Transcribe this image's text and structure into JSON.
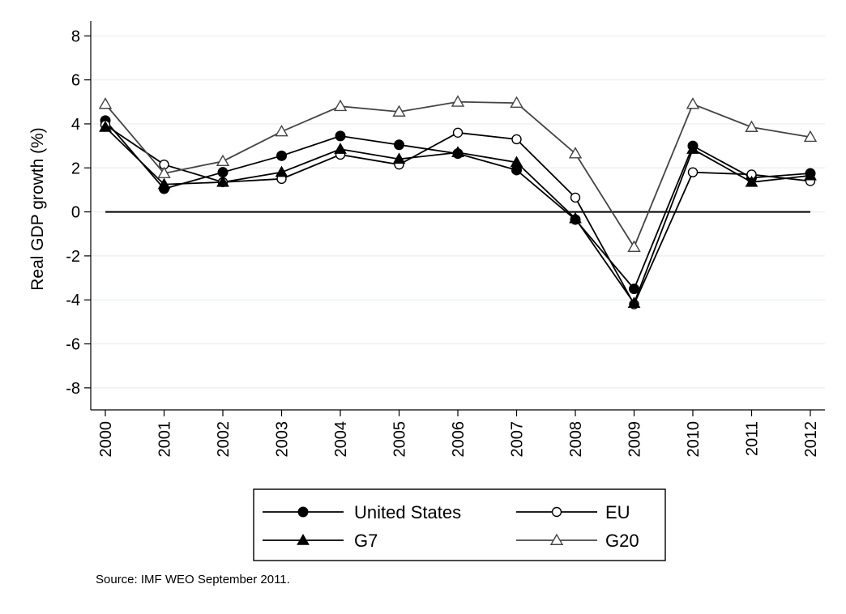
{
  "chart_data": {
    "type": "line",
    "title": "",
    "xlabel": "",
    "ylabel": "Real GDP growth (%)",
    "x": [
      "2000",
      "2001",
      "2002",
      "2003",
      "2004",
      "2005",
      "2006",
      "2007",
      "2008",
      "2009",
      "2010",
      "2011",
      "2012"
    ],
    "ylim": [
      -9,
      8.6
    ],
    "yticks": [
      "8",
      "6",
      "4",
      "2",
      "0",
      "-2",
      "-4",
      "-6",
      "-8"
    ],
    "ytick_values": [
      8,
      6,
      4,
      2,
      0,
      -2,
      -4,
      -6,
      -8
    ],
    "grid": true,
    "zero_line": true,
    "legend_position": "bottom",
    "series": [
      {
        "name": "United States",
        "marker": "filled-circle",
        "values": [
          4.15,
          1.05,
          1.8,
          2.55,
          3.45,
          3.05,
          2.65,
          1.9,
          -0.35,
          -3.5,
          3.0,
          1.55,
          1.75
        ]
      },
      {
        "name": "EU",
        "marker": "hollow-circle",
        "values": [
          3.95,
          2.15,
          1.35,
          1.5,
          2.6,
          2.15,
          3.6,
          3.3,
          0.65,
          -4.2,
          1.8,
          1.7,
          1.4
        ]
      },
      {
        "name": "G7",
        "marker": "filled-triangle",
        "values": [
          3.85,
          1.25,
          1.35,
          1.8,
          2.85,
          2.4,
          2.7,
          2.25,
          -0.3,
          -4.15,
          2.85,
          1.35,
          1.65
        ]
      },
      {
        "name": "G20",
        "marker": "hollow-triangle",
        "values": [
          4.9,
          1.75,
          2.3,
          3.65,
          4.8,
          4.55,
          5.0,
          4.95,
          2.65,
          -1.6,
          4.9,
          3.85,
          3.4
        ]
      }
    ],
    "annotation": "Source: IMF WEO September 2011."
  }
}
